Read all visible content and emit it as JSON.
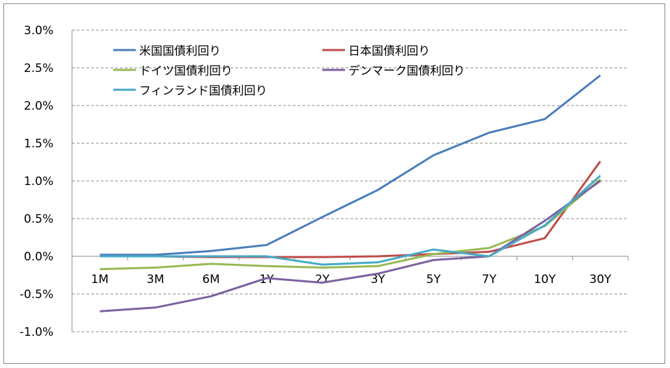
{
  "chart_data": {
    "type": "line",
    "title": "",
    "xlabel": "",
    "ylabel": "",
    "categories": [
      "1M",
      "3M",
      "6M",
      "1Y",
      "2Y",
      "3Y",
      "5Y",
      "7Y",
      "10Y",
      "30Y"
    ],
    "ylim": [
      -1.0,
      3.0
    ],
    "yticks": [
      -1.0,
      -0.5,
      0.0,
      0.5,
      1.0,
      1.5,
      2.0,
      2.5,
      3.0
    ],
    "ytick_labels": [
      "-1.0%",
      "-0.5%",
      "0.0%",
      "0.5%",
      "1.0%",
      "1.5%",
      "2.0%",
      "2.5%",
      "3.0%"
    ],
    "grid": true,
    "legend_position": "top",
    "series": [
      {
        "name": "米国国債利回り",
        "color": "#4a7ebb",
        "values": [
          0.02,
          0.02,
          0.07,
          0.15,
          0.52,
          0.88,
          1.34,
          1.64,
          1.82,
          2.4
        ]
      },
      {
        "name": "日本国債利回り",
        "color": "#be4b48",
        "values": [
          0.0,
          0.0,
          -0.01,
          -0.01,
          -0.01,
          0.0,
          0.03,
          0.06,
          0.24,
          1.26
        ]
      },
      {
        "name": "ドイツ国債利回り",
        "color": "#98b954",
        "values": [
          -0.17,
          -0.15,
          -0.1,
          -0.13,
          -0.15,
          -0.13,
          0.03,
          0.11,
          0.4,
          1.02
        ]
      },
      {
        "name": "デンマーク国債利回り",
        "color": "#7d60a0",
        "values": [
          -0.73,
          -0.68,
          -0.53,
          -0.29,
          -0.35,
          -0.23,
          -0.05,
          0.0,
          0.47,
          1.0
        ]
      },
      {
        "name": "フィンランド国債利回り",
        "color": "#46aac5",
        "values": [
          0.0,
          0.0,
          0.0,
          0.0,
          -0.11,
          -0.08,
          0.09,
          0.0,
          0.41,
          1.07
        ]
      }
    ]
  }
}
